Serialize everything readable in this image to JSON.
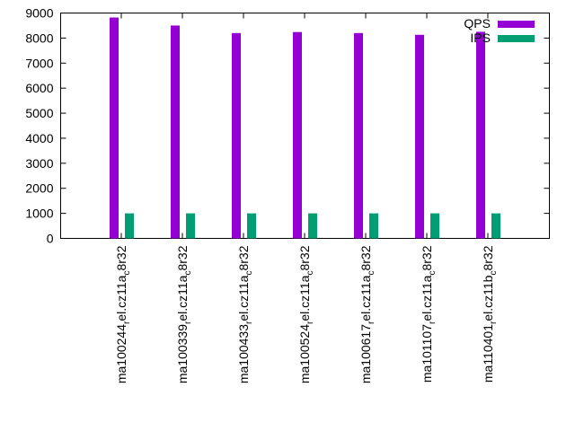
{
  "chart_data": {
    "type": "bar",
    "categories": [
      {
        "main": "ma100244",
        "sub1": "r",
        "mid": "el.cz11a",
        "sub2": "c",
        "end": "8r32"
      },
      {
        "main": "ma100339",
        "sub1": "r",
        "mid": "el.cz11a",
        "sub2": "c",
        "end": "8r32"
      },
      {
        "main": "ma100433",
        "sub1": "r",
        "mid": "el.cz11a",
        "sub2": "c",
        "end": "8r32"
      },
      {
        "main": "ma100524",
        "sub1": "r",
        "mid": "el.cz11a",
        "sub2": "c",
        "end": "8r32"
      },
      {
        "main": "ma100617",
        "sub1": "r",
        "mid": "el.cz11a",
        "sub2": "c",
        "end": "8r32"
      },
      {
        "main": "ma101107",
        "sub1": "r",
        "mid": "el.cz11a",
        "sub2": "c",
        "end": "8r32"
      },
      {
        "main": "ma110401",
        "sub1": "r",
        "mid": "el.cz11b",
        "sub2": "c",
        "end": "8r32"
      }
    ],
    "series": [
      {
        "name": "QPS",
        "color": "#9400d3",
        "values": [
          8820,
          8500,
          8200,
          8240,
          8200,
          8130,
          8250
        ]
      },
      {
        "name": "IPS",
        "color": "#009e73",
        "values": [
          1000,
          1000,
          1000,
          1000,
          1000,
          1000,
          1000
        ]
      }
    ],
    "ylim": [
      0,
      9000
    ],
    "yticks": [
      "0",
      "1000",
      "2000",
      "3000",
      "4000",
      "5000",
      "6000",
      "7000",
      "8000",
      "9000"
    ],
    "legend_position": "top-right",
    "grid": false
  }
}
